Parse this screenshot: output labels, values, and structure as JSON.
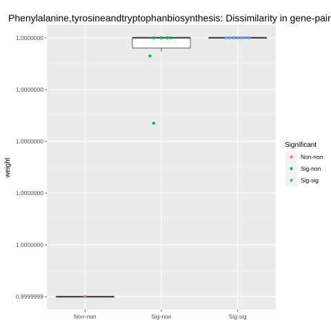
{
  "chart_data": {
    "type": "box+jitter",
    "title": "Phenylalanine,tyrosineandtryptophanbiosynthesis: Dissimilarity in gene-pair",
    "xlabel": "",
    "ylabel": "weight",
    "categories": [
      "Non-non",
      "Sig-non",
      "Sig-sig"
    ],
    "y_tick_labels": [
      "0.9999999",
      "1.0000000",
      "1.0000000",
      "1.0000000",
      "1.0000000",
      "1.0000000"
    ],
    "ylim": [
      0,
      5.2
    ],
    "y_ticks": [
      0.25,
      1.25,
      2.25,
      3.25,
      4.25,
      5.25
    ],
    "legend": {
      "title": "Significant",
      "placement": "right",
      "entries": [
        "Non-non",
        "Sig-non",
        "Sig-sig"
      ]
    },
    "colors": {
      "Non-non": "#F8766D",
      "Sig-non": "#00BA38",
      "Sig-sig": "#619CFF"
    },
    "boxes": [
      {
        "category": "Non-non",
        "q1": 0.25,
        "median": 0.25,
        "q3": 0.25,
        "whisker_low": 0.25,
        "whisker_high": 0.25
      },
      {
        "category": "Sig-non",
        "q1": 5.05,
        "median": 5.25,
        "q3": 5.25,
        "whisker_low": 4.98,
        "whisker_high": 5.25
      },
      {
        "category": "Sig-sig",
        "q1": 5.25,
        "median": 5.25,
        "q3": 5.25,
        "whisker_low": 5.25,
        "whisker_high": 5.25
      }
    ],
    "points": [
      {
        "category": "Non-non",
        "jitter": 0.0,
        "y": 0.25
      },
      {
        "category": "Sig-non",
        "jitter": -0.15,
        "y": 4.9
      },
      {
        "category": "Sig-non",
        "jitter": -0.1,
        "y": 5.25
      },
      {
        "category": "Sig-non",
        "jitter": 0.0,
        "y": 5.25
      },
      {
        "category": "Sig-non",
        "jitter": 0.08,
        "y": 5.25
      },
      {
        "category": "Sig-non",
        "jitter": 0.12,
        "y": 5.25
      },
      {
        "category": "Sig-non",
        "jitter": -0.1,
        "y": 3.6
      },
      {
        "category": "Sig-sig",
        "jitter": -0.15,
        "y": 5.25
      },
      {
        "category": "Sig-sig",
        "jitter": -0.1,
        "y": 5.25
      },
      {
        "category": "Sig-sig",
        "jitter": -0.05,
        "y": 5.25
      },
      {
        "category": "Sig-sig",
        "jitter": 0.0,
        "y": 5.25
      },
      {
        "category": "Sig-sig",
        "jitter": 0.05,
        "y": 5.25
      },
      {
        "category": "Sig-sig",
        "jitter": 0.1,
        "y": 5.25
      },
      {
        "category": "Sig-sig",
        "jitter": 0.15,
        "y": 5.25
      }
    ]
  }
}
